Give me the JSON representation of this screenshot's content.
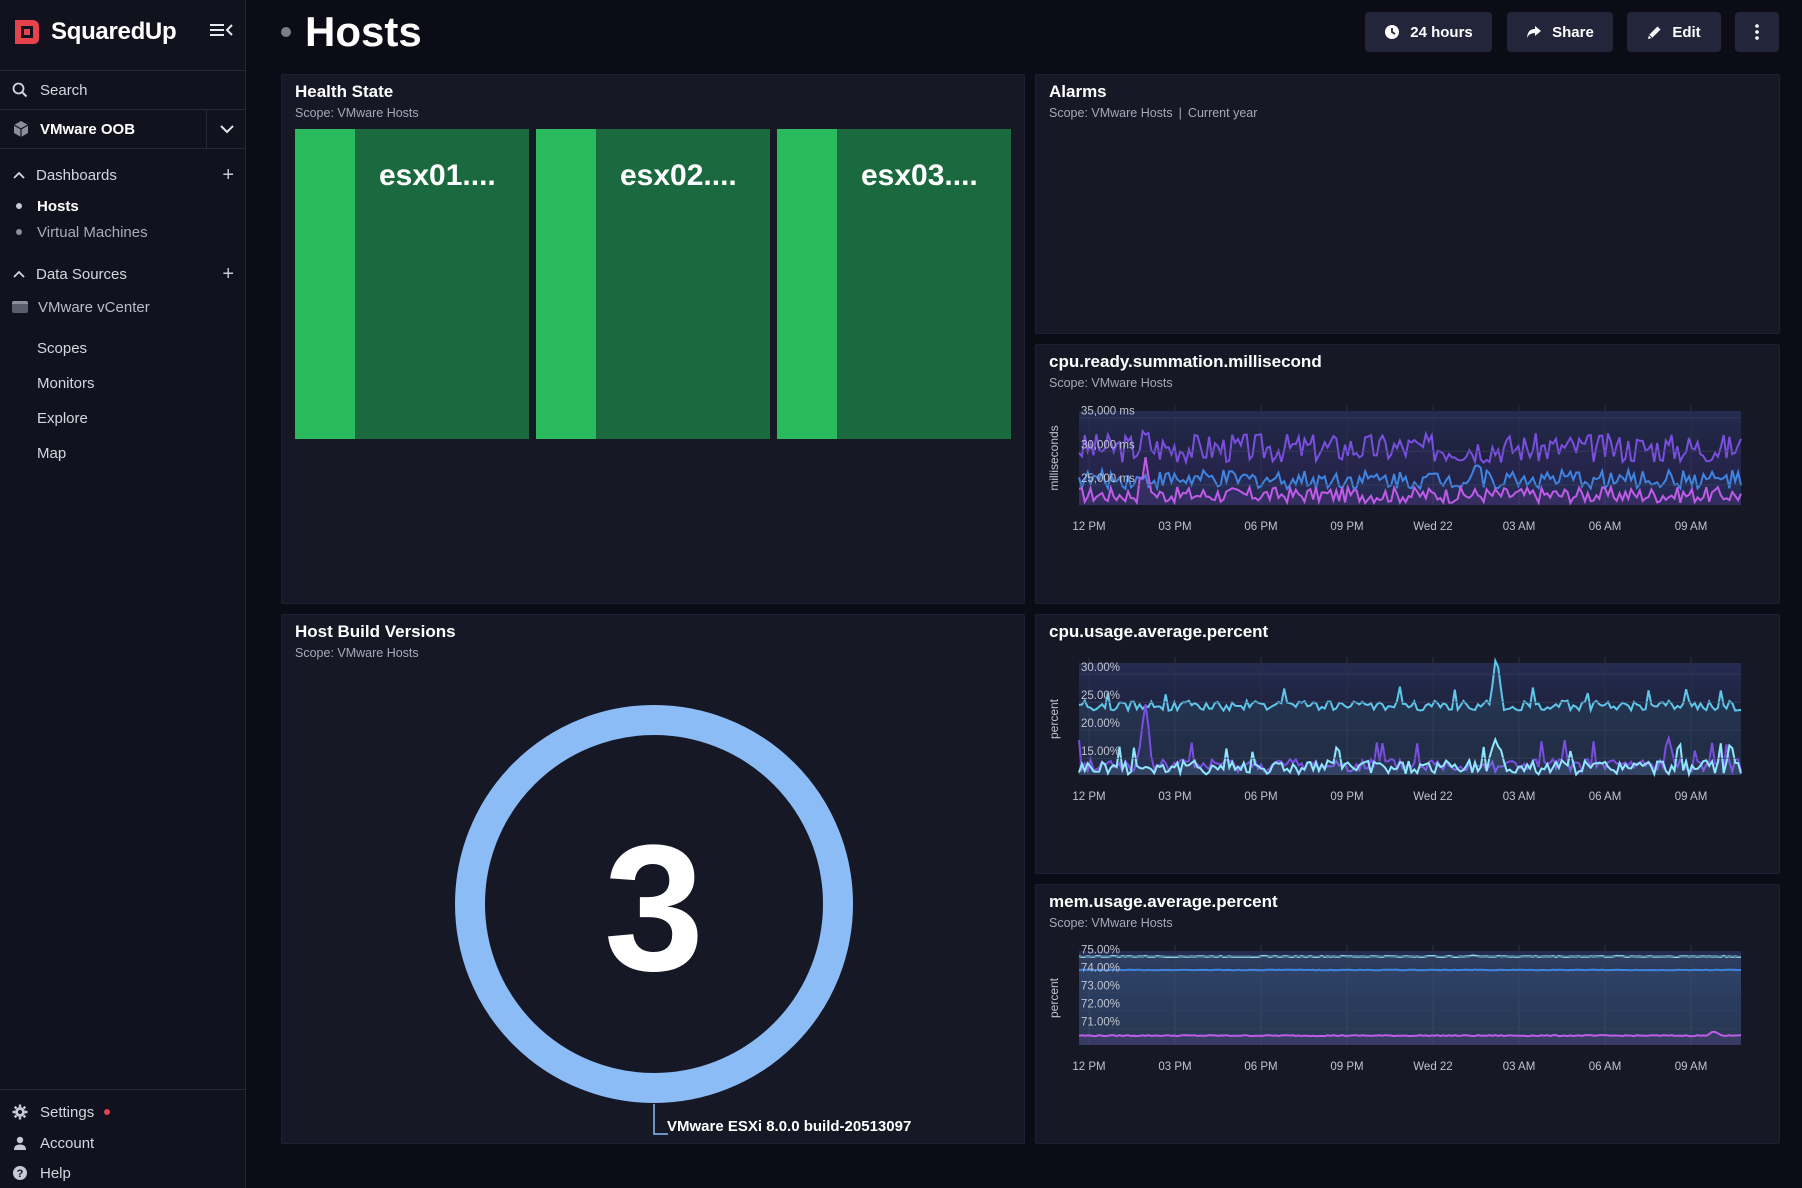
{
  "app": {
    "name": "SquaredUp"
  },
  "sidebar": {
    "search_label": "Search",
    "workspace": "VMware OOB",
    "dashboards_label": "Dashboards",
    "dashboards": [
      {
        "label": "Hosts",
        "active": true
      },
      {
        "label": "Virtual Machines",
        "active": false
      }
    ],
    "data_sources_label": "Data Sources",
    "data_sources": [
      {
        "label": "VMware vCenter"
      }
    ],
    "main_nav": [
      {
        "label": "Scopes"
      },
      {
        "label": "Monitors"
      },
      {
        "label": "Explore"
      },
      {
        "label": "Map"
      }
    ],
    "footer": [
      {
        "label": "Settings",
        "icon": "gear-icon",
        "notification": true
      },
      {
        "label": "Account",
        "icon": "user-icon"
      },
      {
        "label": "Help",
        "icon": "help-icon"
      }
    ]
  },
  "header": {
    "title": "Hosts",
    "time_button": "24 hours",
    "share_button": "Share",
    "edit_button": "Edit"
  },
  "tiles": {
    "health_state": {
      "title": "Health State",
      "scope": "Scope: VMware Hosts",
      "hosts": [
        {
          "name": "esx01....",
          "state": "healthy",
          "color": "#2aba5e"
        },
        {
          "name": "esx02....",
          "state": "healthy",
          "color": "#2aba5e"
        },
        {
          "name": "esx03....",
          "state": "healthy",
          "color": "#2aba5e"
        }
      ]
    },
    "alarms": {
      "title": "Alarms",
      "scope": "Scope: VMware Hosts",
      "timeframe": "Current year"
    },
    "host_build": {
      "title": "Host Build Versions",
      "scope": "Scope: VMware Hosts",
      "total": "3",
      "segment_label": "VMware ESXi 8.0.0 build-20513097",
      "segment_color": "#8bbcf6"
    },
    "cpu_ready": {
      "title": "cpu.ready.summation.millisecond",
      "scope": "Scope: VMware Hosts"
    },
    "cpu_usage": {
      "title": "cpu.usage.average.percent"
    },
    "mem_usage": {
      "title": "mem.usage.average.percent",
      "scope": "Scope: VMware Hosts"
    }
  },
  "chart_data": [
    {
      "id": "cpu-ready",
      "type": "line",
      "ylabel": "milliseconds",
      "yticks": [
        "35,000 ms",
        "30,000 ms",
        "25,000 ms"
      ],
      "ylim": [
        22000,
        36000
      ],
      "xticks": [
        "12 PM",
        "03 PM",
        "06 PM",
        "09 PM",
        "Wed 22",
        "03 AM",
        "06 AM",
        "09 AM"
      ],
      "series": [
        {
          "base": 30500,
          "amp": 2200,
          "spike_at": 0.1,
          "spike": 1500,
          "color": "#7a4fe0"
        },
        {
          "base": 25800,
          "amp": 1400,
          "spike_at": 0.6,
          "spike": 2500,
          "color": "#3f84e0"
        },
        {
          "base": 23500,
          "amp": 1200,
          "spike_at": 0.1,
          "spike": 5000,
          "color": "#c05be8"
        }
      ]
    },
    {
      "id": "cpu-usage",
      "type": "line",
      "ylabel": "percent",
      "yticks": [
        "30.00%",
        "25.00%",
        "20.00%",
        "15.00%"
      ],
      "ylim": [
        12,
        32
      ],
      "xticks": [
        "12 PM",
        "03 PM",
        "06 PM",
        "09 PM",
        "Wed 22",
        "03 AM",
        "06 AM",
        "09 AM"
      ],
      "series": [
        {
          "base": 24.4,
          "amp": 0.9,
          "spike_at": 0.63,
          "spike": 5.5,
          "color": "#5ec7ea"
        },
        {
          "base": 13.8,
          "amp": 1.2,
          "spike_at": 0.1,
          "spike": 10,
          "color": "#7a4fe0"
        },
        {
          "base": 13.4,
          "amp": 1.3,
          "spike_at": 0.63,
          "spike": 6,
          "color": "#8fe7ff"
        }
      ]
    },
    {
      "id": "mem-usage",
      "type": "line",
      "ylabel": "percent",
      "yticks": [
        "75.00%",
        "74.00%",
        "73.00%",
        "72.00%",
        "71.00%"
      ],
      "ylim": [
        70.1,
        75.3
      ],
      "xticks": [
        "12 PM",
        "03 PM",
        "06 PM",
        "09 PM",
        "Wed 22",
        "03 AM",
        "06 AM",
        "09 AM"
      ],
      "series": [
        {
          "base": 75.0,
          "amp": 0.03,
          "spike_at": 0.6,
          "spike": 0.05,
          "color": "#8fe7ff"
        },
        {
          "base": 74.25,
          "amp": 0.02,
          "spike_at": 0.6,
          "spike": 0.02,
          "color": "#3f84e0"
        },
        {
          "base": 70.62,
          "amp": 0.03,
          "spike_at": 0.96,
          "spike": 0.25,
          "color": "#c05be8"
        }
      ]
    }
  ],
  "colors": {
    "background": "#0b0c15",
    "sidebar": "#11121d",
    "tile": "#171826",
    "brand": "#e5424d",
    "healthy_dark": "#1b6a3f",
    "healthy_light": "#2aba5e"
  }
}
